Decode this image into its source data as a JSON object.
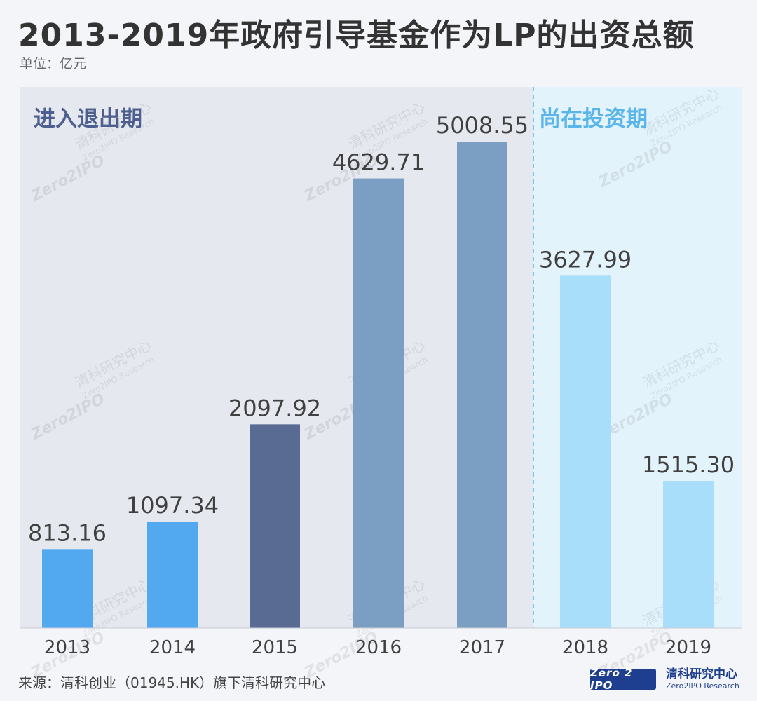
{
  "title": "2013-2019年政府引导基金作为LP的出资总额",
  "unit": "单位：亿元",
  "chart_data": {
    "type": "bar",
    "categories": [
      "2013",
      "2014",
      "2015",
      "2016",
      "2017",
      "2018",
      "2019"
    ],
    "values": [
      813.16,
      1097.34,
      2097.92,
      4629.71,
      5008.55,
      3627.99,
      1515.3
    ],
    "value_labels": [
      "813.16",
      "1097.34",
      "2097.92",
      "4629.71",
      "5008.55",
      "3627.99",
      "1515.30"
    ],
    "bar_colors": [
      "#52a9f0",
      "#52a9f0",
      "#5a6b93",
      "#7a9fc3",
      "#7a9fc3",
      "#a9defa",
      "#a9defa"
    ],
    "ylim": [
      0,
      5500
    ],
    "regions": [
      {
        "label": "进入退出期",
        "color": "#4d5f8f",
        "background": "#e6e8f0"
      },
      {
        "label": "尚在投资期",
        "color": "#5ab5ea",
        "background": "#e3f3fb"
      }
    ]
  },
  "watermark": {
    "cn": "清科研究中心",
    "en": "Zero2IPO Research",
    "logo": "Zero2IPO"
  },
  "footer": {
    "source": "来源：清科创业（01945.HK）旗下清科研究中心",
    "logo_box": "Zero 2 IPO",
    "logo_cn": "清科研究中心",
    "logo_en": "Zero2IPO Research"
  }
}
